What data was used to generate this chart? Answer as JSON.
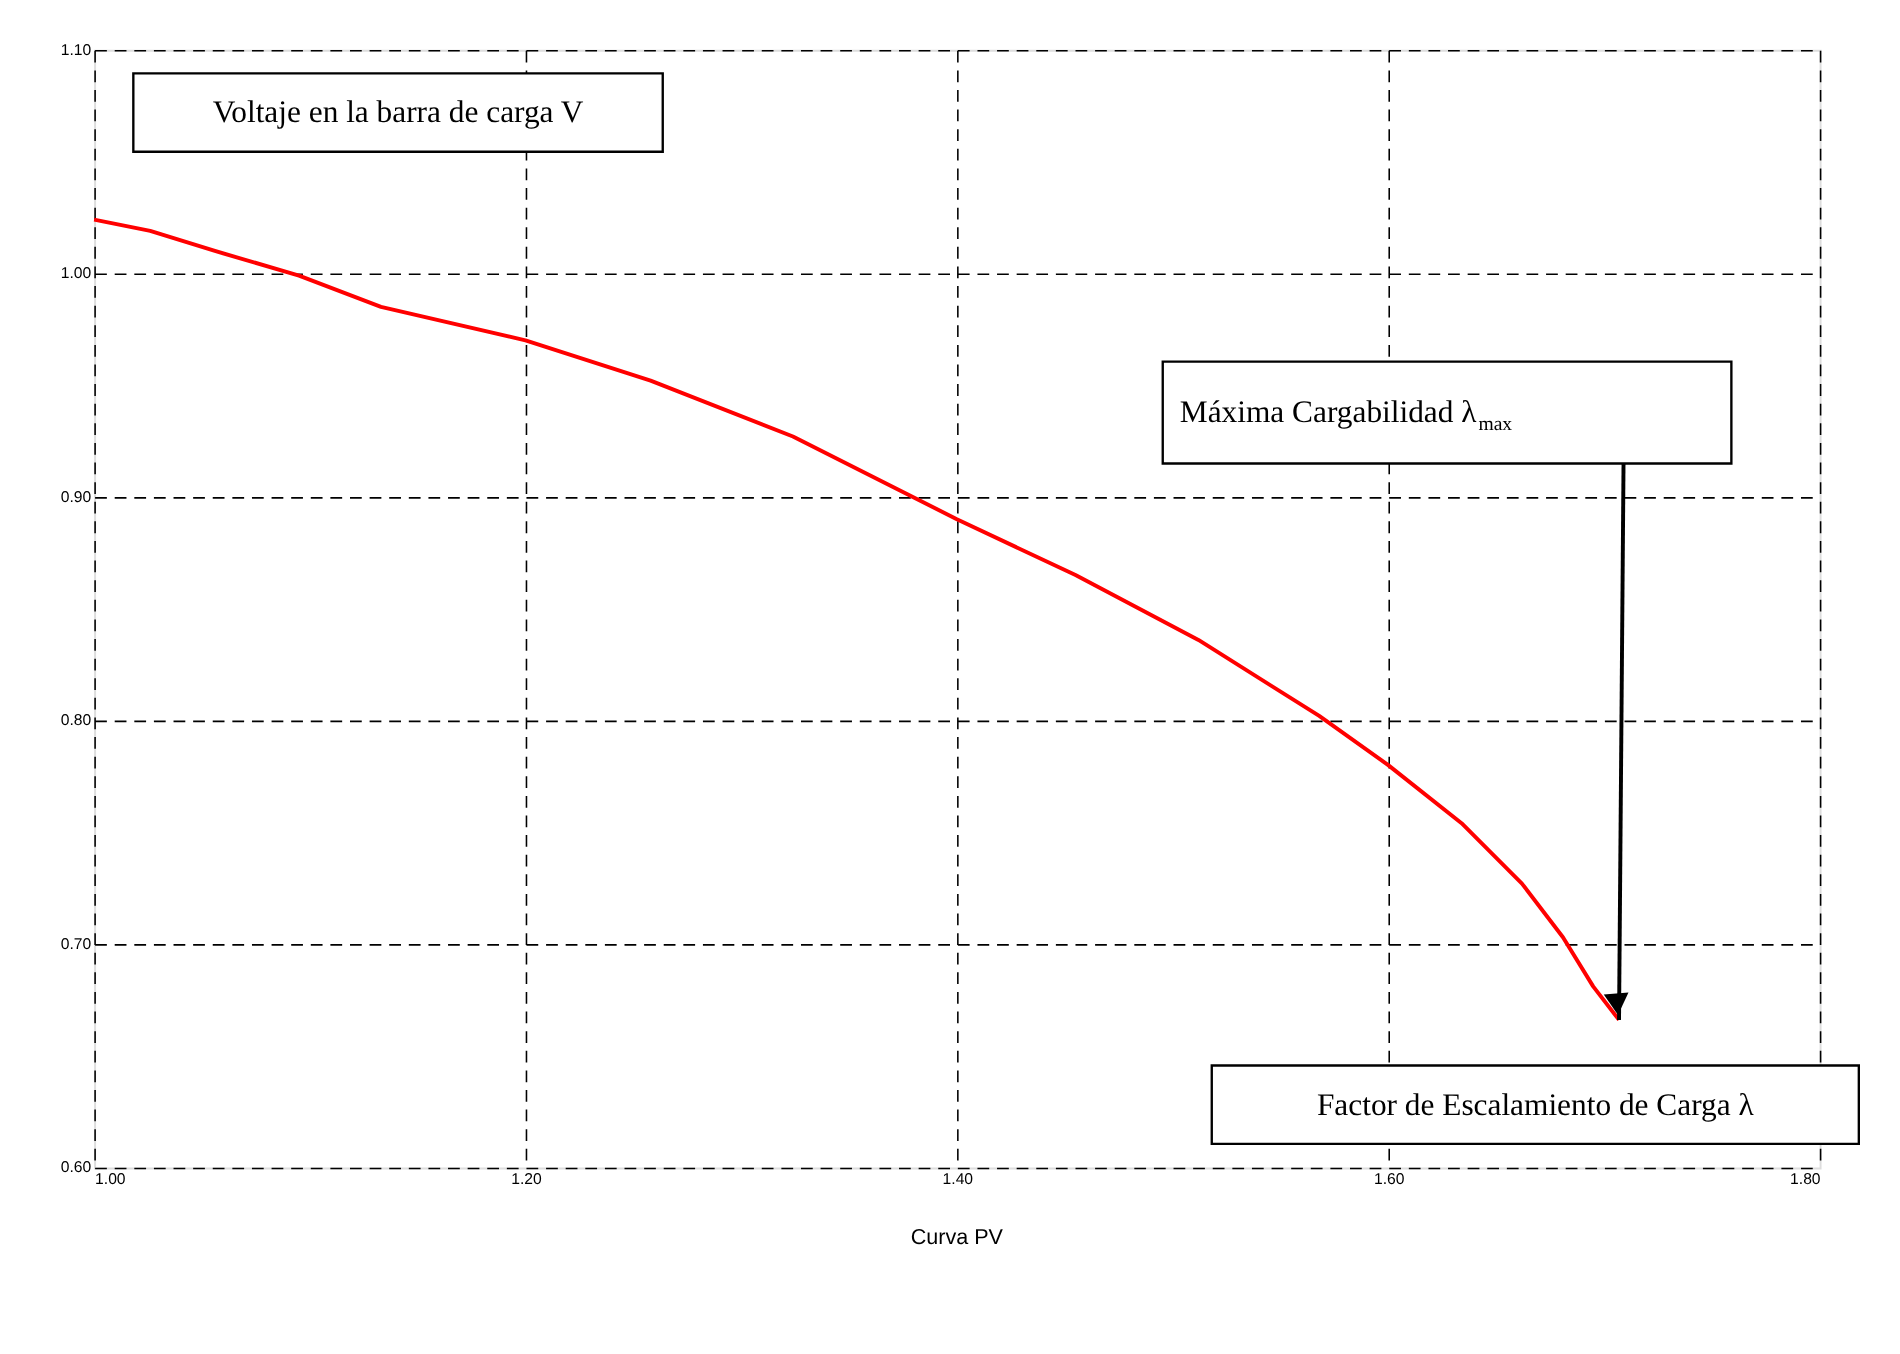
{
  "chart_data": {
    "type": "line",
    "title": "Curva PV",
    "ylabel": "Voltaje en la barra de carga V",
    "xlabel": "Factor de Escalamiento de Carga λ",
    "x": [
      1.0,
      1.026,
      1.056,
      1.095,
      1.133,
      1.2,
      1.258,
      1.324,
      1.4,
      1.455,
      1.512,
      1.568,
      1.6,
      1.634,
      1.662,
      1.681,
      1.695,
      1.707
    ],
    "series": [
      {
        "color": "#ff0000",
        "values": [
          1.024,
          1.019,
          1.01,
          0.999,
          0.985,
          0.97,
          0.952,
          0.927,
          0.89,
          0.865,
          0.836,
          0.802,
          0.78,
          0.754,
          0.727,
          0.703,
          0.681,
          0.666
        ]
      }
    ],
    "xlim": [
      1.0,
      1.8
    ],
    "ylim": [
      0.6,
      1.1
    ],
    "xticks": [
      {
        "value": 1.0,
        "label": "1.00"
      },
      {
        "value": 1.2,
        "label": "1.20"
      },
      {
        "value": 1.4,
        "label": "1.40"
      },
      {
        "value": 1.6,
        "label": "1.60"
      },
      {
        "value": 1.8,
        "label": "1.80"
      }
    ],
    "yticks": [
      {
        "value": 0.6,
        "label": "0.60"
      },
      {
        "value": 0.7,
        "label": "0.70"
      },
      {
        "value": 0.8,
        "label": "0.80"
      },
      {
        "value": 0.9,
        "label": "0.90"
      },
      {
        "value": 1.0,
        "label": "1.00"
      },
      {
        "value": 1.1,
        "label": "1.10"
      }
    ],
    "annotations": [
      "Máxima Cargabilidad λ$_{max}$"
    ],
    "grid": true,
    "marker": "none",
    "line_style": "solid"
  }
}
